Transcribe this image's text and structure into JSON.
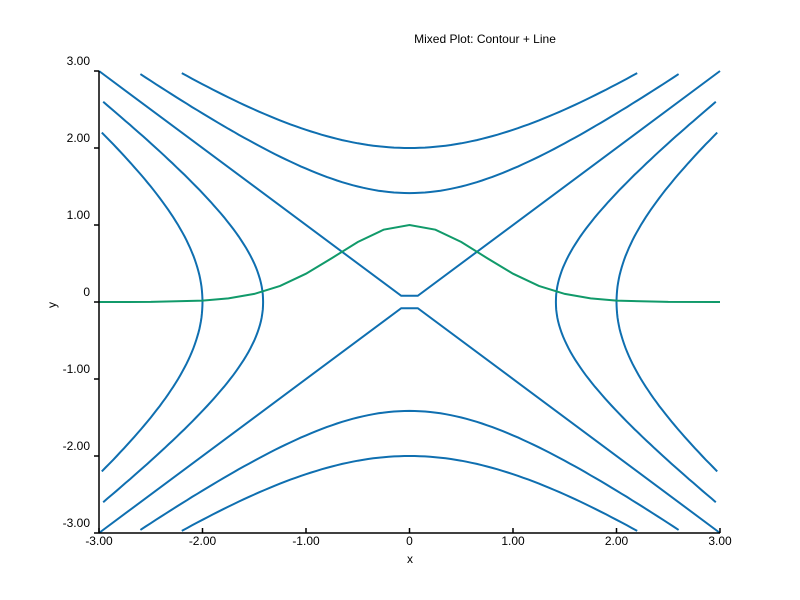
{
  "chart_data": {
    "type": "line",
    "title": "Mixed Plot: Contour + Line",
    "xlabel": "x",
    "ylabel": "y",
    "xlim": [
      -3,
      3
    ],
    "ylim": [
      -3,
      3
    ],
    "x_ticks": [
      "-3.00",
      "-2.00",
      "-1.00",
      "0",
      "1.00",
      "2.00",
      "3.00"
    ],
    "y_ticks": [
      "-3.00",
      "-2.00",
      "-1.00",
      "0",
      "1.00",
      "2.00",
      "3.00"
    ],
    "grid": false,
    "legend": "none",
    "contour": {
      "function": "x^2 - y^2",
      "levels": [
        -4,
        -2,
        0,
        2,
        4
      ],
      "color": "#0f6fb0"
    },
    "series": [
      {
        "function": "exp(-x^2)",
        "color": "#119a6a",
        "x": [
          -3,
          -2.5,
          -2,
          -1.75,
          -1.5,
          -1.25,
          -1,
          -0.75,
          -0.5,
          -0.25,
          0,
          0.25,
          0.5,
          0.75,
          1,
          1.25,
          1.5,
          1.75,
          2,
          2.5,
          3
        ],
        "y": [
          0.0001,
          0.0019,
          0.0183,
          0.0468,
          0.1054,
          0.2096,
          0.3679,
          0.5698,
          0.7788,
          0.9394,
          1,
          0.9394,
          0.7788,
          0.5698,
          0.3679,
          0.2096,
          0.1054,
          0.0468,
          0.0183,
          0.0019,
          0.0001
        ]
      }
    ]
  }
}
